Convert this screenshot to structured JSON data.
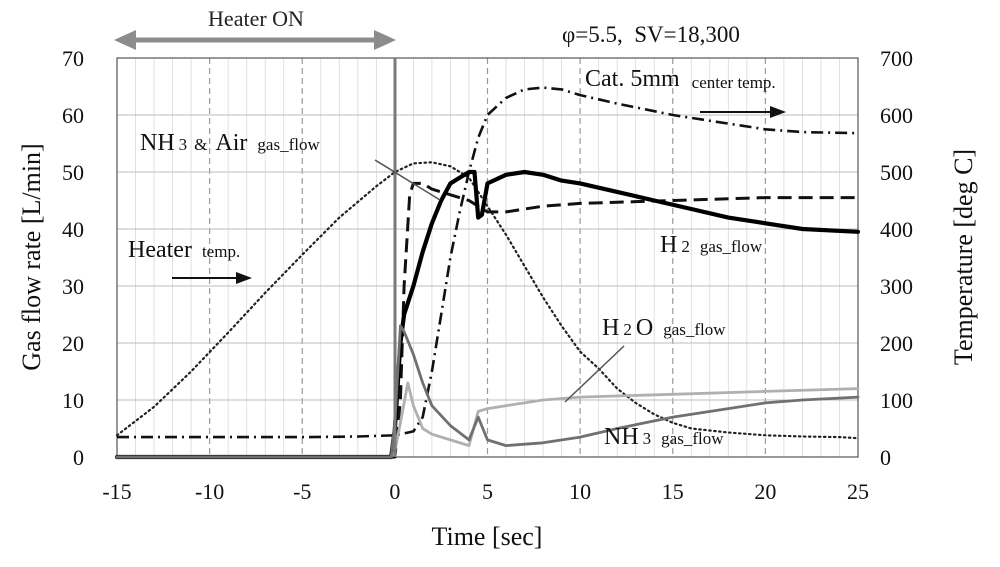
{
  "chart_data": {
    "type": "line",
    "title": "",
    "condition": "φ=5.5,  SV=18,300",
    "heater_on_label": "Heater ON",
    "heater_on_range": [
      -15,
      0
    ],
    "xlabel": "Time [sec]",
    "ylabel_left": "Gas flow rate [L/min]",
    "ylabel_right": "Temperature [deg C]",
    "xlim": [
      -15,
      25
    ],
    "ylim_left": [
      0,
      70
    ],
    "ylim_right": [
      0,
      700
    ],
    "xticks": [
      "-15",
      "-10",
      "-5",
      "0",
      "5",
      "10",
      "15",
      "20",
      "25"
    ],
    "yticks_left": [
      "0",
      "10",
      "20",
      "30",
      "40",
      "50",
      "60",
      "70"
    ],
    "yticks_right": [
      "0",
      "100",
      "200",
      "300",
      "400",
      "500",
      "600",
      "700"
    ],
    "grid": true,
    "annotations": {
      "cat_temp": {
        "main": "Cat. 5mm",
        "sub": "center temp."
      },
      "nh3_air": {
        "main": "NH",
        "sub_num": "3",
        "amp": "&",
        "main2": "Air",
        "sub": "gas_flow"
      },
      "heater": {
        "main": "Heater",
        "sub": "temp."
      },
      "h2": {
        "main": "H",
        "sub_num": "2",
        "sub": "gas_flow"
      },
      "h2o": {
        "main": "H",
        "sub_num": "2",
        "main2": "O",
        "sub": "gas_flow"
      },
      "nh3": {
        "main": "NH",
        "sub_num": "3",
        "sub": "gas_flow"
      }
    },
    "series": [
      {
        "name": "Heater temp.",
        "axis": "right",
        "style": "dotted",
        "color": "#222222",
        "x": [
          -15,
          -13,
          -11,
          -9,
          -7,
          -5,
          -3,
          -1,
          0,
          1,
          2,
          3,
          4,
          5,
          6,
          7,
          8,
          9,
          10,
          11,
          12,
          13,
          14,
          15,
          16,
          18,
          20,
          22,
          24,
          25
        ],
        "y": [
          38,
          88,
          150,
          218,
          288,
          355,
          420,
          475,
          500,
          515,
          517,
          510,
          490,
          440,
          390,
          335,
          280,
          230,
          185,
          155,
          120,
          95,
          75,
          60,
          50,
          43,
          38,
          36,
          35,
          33
        ]
      },
      {
        "name": "Cat. 5mm center temp.",
        "axis": "right",
        "style": "dashdot",
        "color": "#111111",
        "x": [
          -15,
          -10,
          -5,
          -2,
          0,
          1,
          1.5,
          2,
          2.5,
          3,
          3.5,
          4,
          4.5,
          5,
          6,
          7,
          8,
          9,
          10,
          12,
          15,
          18,
          20,
          22,
          25
        ],
        "y": [
          35,
          35,
          35,
          36,
          38,
          45,
          70,
          150,
          250,
          350,
          430,
          500,
          560,
          600,
          630,
          645,
          648,
          645,
          635,
          620,
          600,
          585,
          575,
          570,
          568
        ]
      },
      {
        "name": "NH3 & Air gas_flow",
        "axis": "left",
        "style": "dashed",
        "color": "#111111",
        "x": [
          -15,
          -1,
          0,
          0.3,
          0.5,
          0.8,
          1,
          1.5,
          2,
          3,
          4,
          4.5,
          5,
          6,
          8,
          10,
          15,
          20,
          25
        ],
        "y": [
          0,
          0,
          0,
          10,
          30,
          46,
          48,
          48,
          47,
          46,
          45,
          44,
          43,
          43,
          44,
          44.5,
          45,
          45.5,
          45.5
        ]
      },
      {
        "name": "H2 gas_flow",
        "axis": "left",
        "style": "solid-thick",
        "color": "#000000",
        "x": [
          -15,
          -0.2,
          0,
          0.3,
          0.5,
          1,
          1.5,
          2,
          2.5,
          3,
          3.5,
          4,
          4.3,
          4.5,
          4.7,
          5,
          6,
          7,
          8,
          9,
          10,
          12,
          14,
          16,
          18,
          20,
          22,
          25
        ],
        "y": [
          0,
          0,
          5,
          20,
          25,
          30,
          36,
          41,
          45,
          48,
          49,
          50,
          50,
          42,
          42.5,
          48,
          49.5,
          50,
          49.5,
          48.5,
          48,
          46.5,
          45,
          43.5,
          42,
          41,
          40,
          39.5
        ]
      },
      {
        "name": "H2O gas_flow",
        "axis": "left",
        "style": "solid",
        "color": "#b0b0b0",
        "x": [
          -15,
          -0.2,
          0,
          0.3,
          0.7,
          1,
          1.5,
          2,
          3,
          4,
          4.5,
          5,
          6,
          8,
          10,
          15,
          20,
          25
        ],
        "y": [
          0,
          0,
          1,
          6,
          13,
          9,
          5,
          4,
          3,
          2,
          8,
          8.5,
          9,
          10,
          10.5,
          11,
          11.5,
          12
        ]
      },
      {
        "name": "NH3 gas_flow",
        "axis": "left",
        "style": "solid",
        "color": "#707070",
        "x": [
          -15,
          -0.2,
          0,
          0.3,
          0.5,
          1,
          1.5,
          2,
          3,
          4,
          4.5,
          5,
          6,
          8,
          10,
          12,
          15,
          18,
          20,
          22,
          25
        ],
        "y": [
          0,
          0,
          6,
          23,
          22,
          18,
          13,
          9,
          5.5,
          3,
          7,
          3,
          2,
          2.5,
          3.5,
          5,
          7,
          8.5,
          9.5,
          10,
          10.5
        ]
      }
    ]
  }
}
